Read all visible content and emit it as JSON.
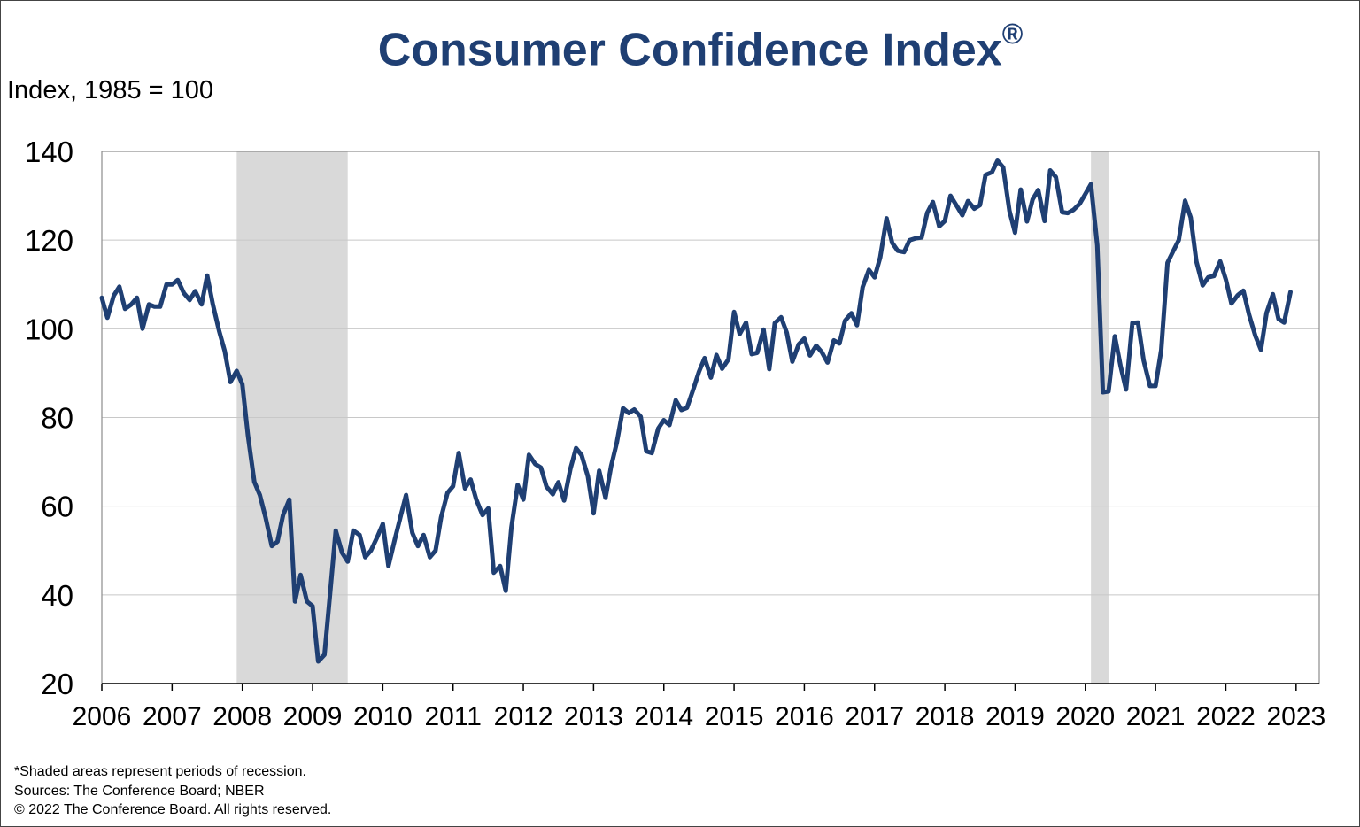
{
  "chart_data": {
    "type": "line",
    "title": "Consumer Confidence Index",
    "title_mark": "®",
    "ylabel": "Index, 1985 = 100",
    "ylim": [
      20,
      140
    ],
    "yticks": [
      20,
      40,
      60,
      80,
      100,
      120,
      140
    ],
    "xlim": [
      2006,
      2023.33
    ],
    "xticks": [
      "2006",
      "2007",
      "2008",
      "2009",
      "2010",
      "2011",
      "2012",
      "2013",
      "2014",
      "2015",
      "2016",
      "2017",
      "2018",
      "2019",
      "2020",
      "2021",
      "2022",
      "2023"
    ],
    "grid": true,
    "line_color": "#1f3f73",
    "shade_color": "#d9d9d9",
    "recessions": [
      {
        "start": 2007.92,
        "end": 2009.5
      },
      {
        "start": 2020.08,
        "end": 2020.33
      }
    ],
    "series": [
      {
        "values": [
          [
            2006.0,
            107
          ],
          [
            2006.08,
            102.5
          ],
          [
            2006.17,
            107.5
          ],
          [
            2006.25,
            109.5
          ],
          [
            2006.33,
            104.5
          ],
          [
            2006.42,
            105.5
          ],
          [
            2006.5,
            107
          ],
          [
            2006.58,
            100
          ],
          [
            2006.67,
            105.5
          ],
          [
            2006.75,
            105
          ],
          [
            2006.83,
            105
          ],
          [
            2006.92,
            110
          ],
          [
            2007.0,
            110
          ],
          [
            2007.08,
            111
          ],
          [
            2007.17,
            108
          ],
          [
            2007.25,
            106.5
          ],
          [
            2007.33,
            108.5
          ],
          [
            2007.42,
            105.5
          ],
          [
            2007.5,
            112
          ],
          [
            2007.58,
            105.5
          ],
          [
            2007.67,
            99.5
          ],
          [
            2007.75,
            95
          ],
          [
            2007.83,
            88
          ],
          [
            2007.92,
            90.5
          ],
          [
            2008.0,
            87.5
          ],
          [
            2008.08,
            76
          ],
          [
            2008.17,
            65.5
          ],
          [
            2008.25,
            62.5
          ],
          [
            2008.33,
            57.5
          ],
          [
            2008.42,
            51
          ],
          [
            2008.5,
            52
          ],
          [
            2008.58,
            58
          ],
          [
            2008.67,
            61.5
          ],
          [
            2008.75,
            38.5
          ],
          [
            2008.83,
            44.5
          ],
          [
            2008.92,
            38.5
          ],
          [
            2009.0,
            37.5
          ],
          [
            2009.08,
            25
          ],
          [
            2009.17,
            26.5
          ],
          [
            2009.25,
            40.5
          ],
          [
            2009.33,
            54.5
          ],
          [
            2009.42,
            49.5
          ],
          [
            2009.5,
            47.5
          ],
          [
            2009.58,
            54.5
          ],
          [
            2009.67,
            53.5
          ],
          [
            2009.75,
            48.5
          ],
          [
            2009.83,
            50
          ],
          [
            2009.92,
            53
          ],
          [
            2010.0,
            56
          ],
          [
            2010.08,
            46.5
          ],
          [
            2010.17,
            52.5
          ],
          [
            2010.25,
            57.5
          ],
          [
            2010.33,
            62.5
          ],
          [
            2010.42,
            54
          ],
          [
            2010.5,
            51
          ],
          [
            2010.58,
            53.5
          ],
          [
            2010.67,
            48.5
          ],
          [
            2010.75,
            50
          ],
          [
            2010.83,
            57.5
          ],
          [
            2010.92,
            63
          ],
          [
            2011.0,
            64.5
          ],
          [
            2011.08,
            72
          ],
          [
            2011.17,
            64
          ],
          [
            2011.25,
            66
          ],
          [
            2011.33,
            61.5
          ],
          [
            2011.42,
            58
          ],
          [
            2011.5,
            59.5
          ],
          [
            2011.58,
            45
          ],
          [
            2011.67,
            46.5
          ],
          [
            2011.75,
            40.9
          ],
          [
            2011.83,
            55.2
          ],
          [
            2011.92,
            64.8
          ],
          [
            2012.0,
            61.5
          ],
          [
            2012.08,
            71.6
          ],
          [
            2012.17,
            69.5
          ],
          [
            2012.25,
            68.7
          ],
          [
            2012.33,
            64.4
          ],
          [
            2012.42,
            62.7
          ],
          [
            2012.5,
            65.4
          ],
          [
            2012.58,
            61.3
          ],
          [
            2012.67,
            68.4
          ],
          [
            2012.75,
            73.1
          ],
          [
            2012.83,
            71.5
          ],
          [
            2012.92,
            66.7
          ],
          [
            2013.0,
            58.4
          ],
          [
            2013.08,
            68
          ],
          [
            2013.17,
            61.9
          ],
          [
            2013.25,
            69
          ],
          [
            2013.33,
            74.3
          ],
          [
            2013.42,
            82.1
          ],
          [
            2013.5,
            81
          ],
          [
            2013.58,
            81.8
          ],
          [
            2013.67,
            80.2
          ],
          [
            2013.75,
            72.4
          ],
          [
            2013.83,
            72
          ],
          [
            2013.92,
            77.5
          ],
          [
            2014.0,
            79.4
          ],
          [
            2014.08,
            78.3
          ],
          [
            2014.17,
            83.9
          ],
          [
            2014.25,
            81.7
          ],
          [
            2014.33,
            82.2
          ],
          [
            2014.42,
            86.4
          ],
          [
            2014.5,
            90.3
          ],
          [
            2014.58,
            93.4
          ],
          [
            2014.67,
            89
          ],
          [
            2014.75,
            94.1
          ],
          [
            2014.83,
            91
          ],
          [
            2014.92,
            93.1
          ],
          [
            2015.0,
            103.8
          ],
          [
            2015.08,
            98.8
          ],
          [
            2015.17,
            101.4
          ],
          [
            2015.25,
            94.3
          ],
          [
            2015.33,
            94.6
          ],
          [
            2015.42,
            99.8
          ],
          [
            2015.5,
            90.9
          ],
          [
            2015.58,
            101.3
          ],
          [
            2015.67,
            102.6
          ],
          [
            2015.75,
            99.1
          ],
          [
            2015.83,
            92.6
          ],
          [
            2015.92,
            96.5
          ],
          [
            2016.0,
            97.8
          ],
          [
            2016.08,
            94
          ],
          [
            2016.17,
            96.2
          ],
          [
            2016.25,
            94.7
          ],
          [
            2016.33,
            92.4
          ],
          [
            2016.42,
            97.4
          ],
          [
            2016.5,
            96.7
          ],
          [
            2016.58,
            101.8
          ],
          [
            2016.67,
            103.5
          ],
          [
            2016.75,
            100.8
          ],
          [
            2016.83,
            109.4
          ],
          [
            2016.92,
            113.3
          ],
          [
            2017.0,
            111.6
          ],
          [
            2017.08,
            116.1
          ],
          [
            2017.17,
            124.9
          ],
          [
            2017.25,
            119.4
          ],
          [
            2017.33,
            117.6
          ],
          [
            2017.42,
            117.3
          ],
          [
            2017.5,
            120
          ],
          [
            2017.58,
            120.4
          ],
          [
            2017.67,
            120.6
          ],
          [
            2017.75,
            126.2
          ],
          [
            2017.83,
            128.6
          ],
          [
            2017.92,
            123.1
          ],
          [
            2018.0,
            124.3
          ],
          [
            2018.08,
            130
          ],
          [
            2018.17,
            127.7
          ],
          [
            2018.25,
            125.6
          ],
          [
            2018.33,
            128.8
          ],
          [
            2018.42,
            127.1
          ],
          [
            2018.5,
            127.9
          ],
          [
            2018.58,
            134.7
          ],
          [
            2018.67,
            135.3
          ],
          [
            2018.75,
            137.9
          ],
          [
            2018.83,
            136.4
          ],
          [
            2018.92,
            126.6
          ],
          [
            2019.0,
            121.7
          ],
          [
            2019.08,
            131.4
          ],
          [
            2019.17,
            124.2
          ],
          [
            2019.25,
            129.2
          ],
          [
            2019.33,
            131.3
          ],
          [
            2019.42,
            124.3
          ],
          [
            2019.5,
            135.7
          ],
          [
            2019.58,
            134.2
          ],
          [
            2019.67,
            126.3
          ],
          [
            2019.75,
            126.1
          ],
          [
            2019.83,
            126.8
          ],
          [
            2019.92,
            128.2
          ],
          [
            2020.0,
            130.4
          ],
          [
            2020.08,
            132.6
          ],
          [
            2020.17,
            118.8
          ],
          [
            2020.25,
            85.7
          ],
          [
            2020.33,
            85.9
          ],
          [
            2020.42,
            98.3
          ],
          [
            2020.5,
            91.7
          ],
          [
            2020.58,
            86.3
          ],
          [
            2020.67,
            101.3
          ],
          [
            2020.75,
            101.4
          ],
          [
            2020.83,
            92.9
          ],
          [
            2020.92,
            87.1
          ],
          [
            2021.0,
            87.1
          ],
          [
            2021.08,
            95.2
          ],
          [
            2021.17,
            114.9
          ],
          [
            2021.25,
            117.5
          ],
          [
            2021.33,
            120
          ],
          [
            2021.42,
            128.9
          ],
          [
            2021.5,
            125.1
          ],
          [
            2021.58,
            115.2
          ],
          [
            2021.67,
            109.8
          ],
          [
            2021.75,
            111.6
          ],
          [
            2021.83,
            111.9
          ],
          [
            2021.92,
            115.2
          ],
          [
            2022.0,
            111.1
          ],
          [
            2022.08,
            105.7
          ],
          [
            2022.17,
            107.6
          ],
          [
            2022.25,
            108.6
          ],
          [
            2022.33,
            103.2
          ],
          [
            2022.42,
            98.4
          ],
          [
            2022.5,
            95.3
          ],
          [
            2022.58,
            103.6
          ],
          [
            2022.67,
            107.8
          ],
          [
            2022.75,
            102.2
          ],
          [
            2022.83,
            101.4
          ],
          [
            2022.92,
            108.3
          ]
        ]
      }
    ]
  },
  "notes": [
    "*Shaded areas represent periods of recession.",
    "Sources: The Conference Board;  NBER",
    "© 2022 The Conference Board. All rights reserved."
  ]
}
